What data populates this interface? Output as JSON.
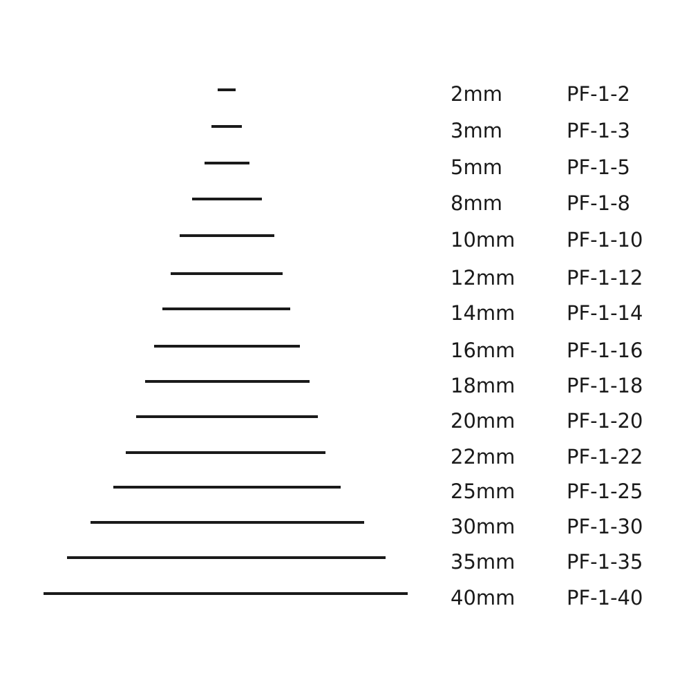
{
  "line_color": "#1a1a1a",
  "items": [
    {
      "size": "2mm",
      "code": "PF-1-2"
    },
    {
      "size": "3mm",
      "code": "PF-1-3"
    },
    {
      "size": "5mm",
      "code": "PF-1-5"
    },
    {
      "size": "8mm",
      "code": "PF-1-8"
    },
    {
      "size": "10mm",
      "code": "PF-1-10"
    },
    {
      "size": "12mm",
      "code": "PF-1-12"
    },
    {
      "size": "14mm",
      "code": "PF-1-14"
    },
    {
      "size": "16mm",
      "code": "PF-1-16"
    },
    {
      "size": "18mm",
      "code": "PF-1-18"
    },
    {
      "size": "20mm",
      "code": "PF-1-20"
    },
    {
      "size": "22mm",
      "code": "PF-1-22"
    },
    {
      "size": "25mm",
      "code": "PF-1-25"
    },
    {
      "size": "30mm",
      "code": "PF-1-30"
    },
    {
      "size": "35mm",
      "code": "PF-1-35"
    },
    {
      "size": "40mm",
      "code": "PF-1-40"
    }
  ]
}
